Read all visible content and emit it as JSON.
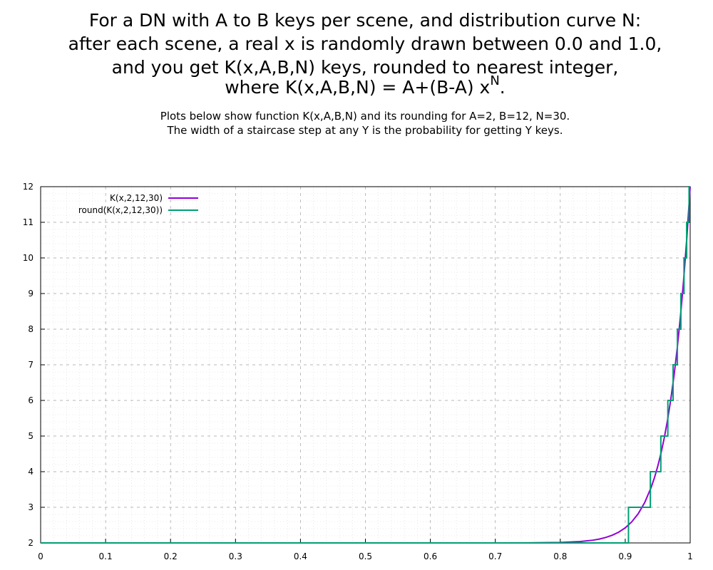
{
  "chart_data": {
    "type": "line",
    "title_lines": [
      "For a DN with A to B keys per scene, and distribution curve N:",
      "after each scene, a real x is randomly drawn between 0.0 and 1.0,",
      "and you get K(x,A,B,N) keys, rounded to nearest integer,"
    ],
    "title_formula": {
      "text": "where K(x,A,B,N) = A+(B-A) x",
      "superscript": "N",
      "end": "."
    },
    "subtitle_lines": [
      "Plots below show function K(x,A,B,N) and its rounding for A=2, B=12, N=30.",
      "The width of a staircase step at any Y is the probability for getting Y keys."
    ],
    "xlim": [
      0,
      1
    ],
    "ylim": [
      2,
      12
    ],
    "xticks": [
      0,
      0.1,
      0.2,
      0.3,
      0.4,
      0.5,
      0.6,
      0.7,
      0.8,
      0.9,
      1
    ],
    "yticks": [
      2,
      3,
      4,
      5,
      6,
      7,
      8,
      9,
      10,
      11,
      12
    ],
    "grid": true,
    "minor_subdivisions": 5,
    "legend": "upper-left",
    "series": [
      {
        "name": "K(x,2,12,30)",
        "color": "#9400d3",
        "x": [
          0,
          0.6,
          0.7,
          0.75,
          0.8,
          0.83,
          0.85,
          0.86,
          0.87,
          0.88,
          0.89,
          0.9,
          0.91,
          0.92,
          0.93,
          0.94,
          0.945,
          0.95,
          0.955,
          0.96,
          0.965,
          0.97,
          0.975,
          0.98,
          0.985,
          0.99,
          0.995,
          1
        ],
        "values": [
          2,
          2,
          2.0002,
          2.0018,
          2.0124,
          2.037,
          2.0763,
          2.108,
          2.153,
          2.216,
          2.303,
          2.424,
          2.591,
          2.82,
          3.134,
          3.563,
          3.832,
          4.146,
          4.513,
          4.939,
          5.434,
          6.01,
          6.679,
          7.455,
          8.355,
          9.397,
          10.604,
          12
        ]
      },
      {
        "name": "round(K(x,2,12,30))",
        "color": "#009e73",
        "x": [
          0,
          0.905,
          0.905,
          0.9387,
          0.9387,
          0.9548,
          0.9548,
          0.9656,
          0.9656,
          0.9737,
          0.9737,
          0.9803,
          0.9803,
          0.9857,
          0.9857,
          0.9905,
          0.9905,
          0.9946,
          0.9946,
          0.9983,
          0.9983,
          1
        ],
        "values": [
          2,
          2,
          3,
          3,
          4,
          4,
          5,
          5,
          6,
          6,
          7,
          7,
          8,
          8,
          9,
          9,
          10,
          10,
          11,
          11,
          12,
          12
        ]
      }
    ]
  }
}
